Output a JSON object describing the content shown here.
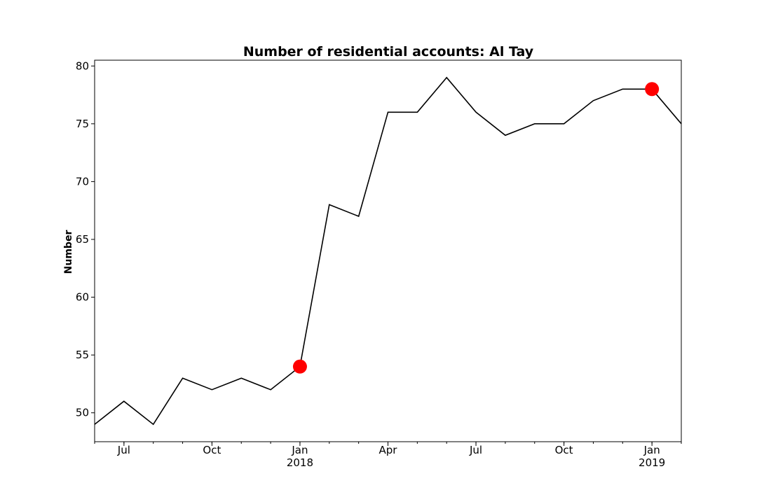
{
  "chart_data": {
    "type": "line",
    "title": "Number of residential accounts: Al Tay",
    "xlabel": "",
    "ylabel": "Number",
    "x_start": "2017-06",
    "x_end": "2019-02",
    "ylim": [
      47.5,
      80.5
    ],
    "grid": false,
    "y_ticks": [
      50,
      55,
      60,
      65,
      70,
      75,
      80
    ],
    "x_ticks": [
      {
        "date": "2017-07",
        "label": "Jul",
        "sublabel": ""
      },
      {
        "date": "2017-10",
        "label": "Oct",
        "sublabel": ""
      },
      {
        "date": "2018-01",
        "label": "Jan",
        "sublabel": "2018"
      },
      {
        "date": "2018-04",
        "label": "Apr",
        "sublabel": ""
      },
      {
        "date": "2018-07",
        "label": "Jul",
        "sublabel": ""
      },
      {
        "date": "2018-10",
        "label": "Oct",
        "sublabel": ""
      },
      {
        "date": "2019-01",
        "label": "Jan",
        "sublabel": "2019"
      }
    ],
    "series": [
      {
        "color": "#000000",
        "x": [
          "2017-06",
          "2017-07",
          "2017-08",
          "2017-09",
          "2017-10",
          "2017-11",
          "2017-12",
          "2018-01",
          "2018-02",
          "2018-03",
          "2018-04",
          "2018-05",
          "2018-06",
          "2018-07",
          "2018-08",
          "2018-09",
          "2018-10",
          "2018-11",
          "2018-12",
          "2019-01",
          "2019-02"
        ],
        "values": [
          49,
          51,
          49,
          53,
          52,
          53,
          52,
          54,
          68,
          67,
          76,
          76,
          79,
          76,
          74,
          75,
          75,
          77,
          78,
          78,
          75
        ]
      }
    ],
    "highlights": [
      {
        "x": "2018-01",
        "value": 54,
        "color": "#ff0000"
      },
      {
        "x": "2019-01",
        "value": 78,
        "color": "#ff0000"
      }
    ]
  }
}
